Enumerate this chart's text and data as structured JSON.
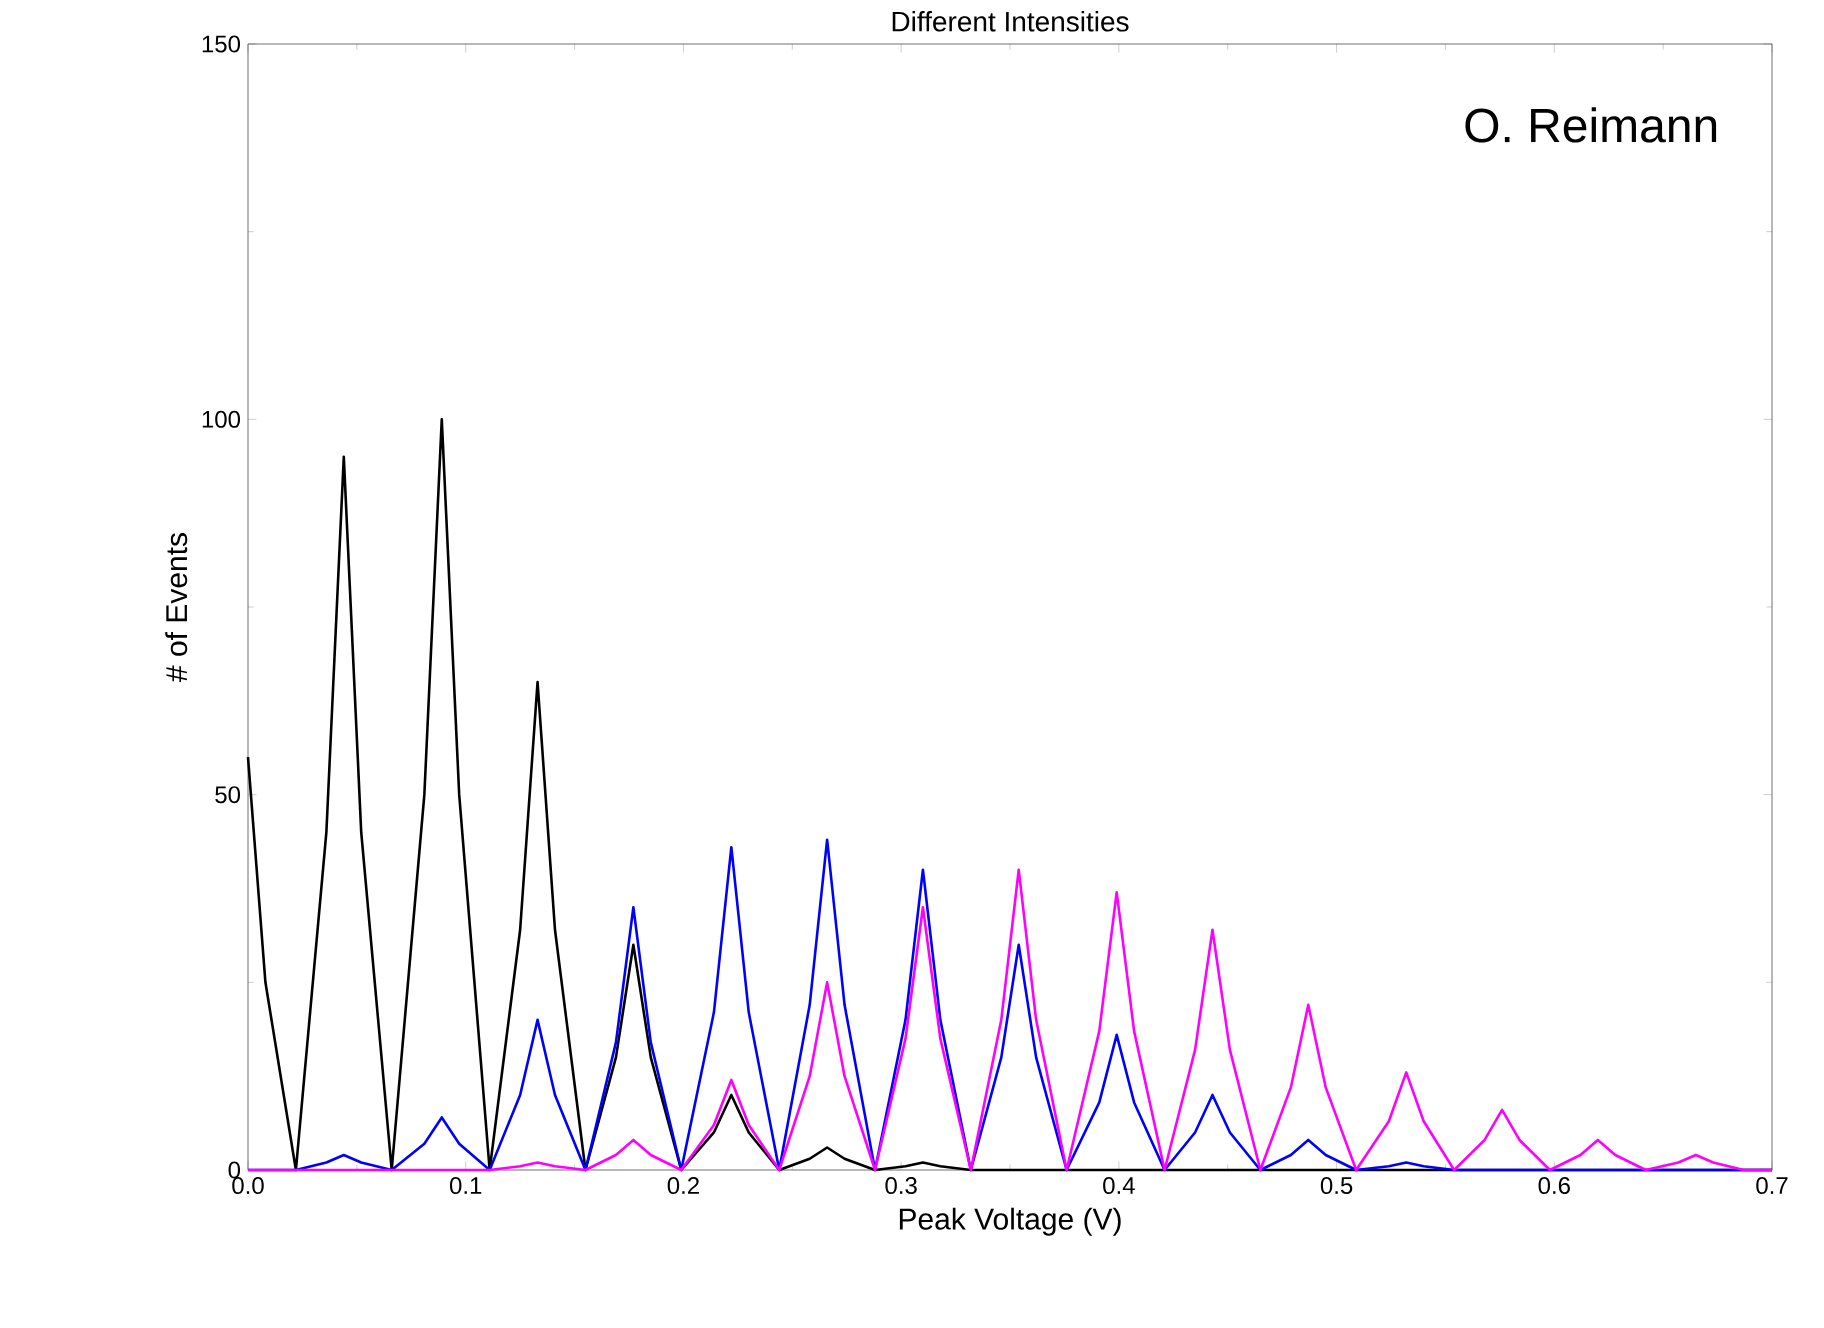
{
  "chart_data": {
    "type": "line",
    "title": "Different Intensities",
    "xlabel": "Peak Voltage (V)",
    "ylabel": "# of Events",
    "annotations": [
      "O. Reimann"
    ],
    "xlim": [
      0,
      0.7
    ],
    "ylim": [
      0,
      150
    ],
    "xticks": [
      {
        "value": 0,
        "label": "0.0"
      },
      {
        "value": 0.1,
        "label": "0.1"
      },
      {
        "value": 0.2,
        "label": "0.2"
      },
      {
        "value": 0.3,
        "label": "0.3"
      },
      {
        "value": 0.4,
        "label": "0.4"
      },
      {
        "value": 0.5,
        "label": "0.5"
      },
      {
        "value": 0.6,
        "label": "0.6"
      },
      {
        "value": 0.7,
        "label": "0.7"
      }
    ],
    "yticks": [
      0,
      50,
      100,
      150
    ],
    "series": [
      {
        "color": "#000000",
        "x": [
          0,
          0.008,
          0.022,
          0.036,
          0.044,
          0.052,
          0.066,
          0.081,
          0.089,
          0.097,
          0.111,
          0.125,
          0.133,
          0.141,
          0.155,
          0.169,
          0.177,
          0.185,
          0.199,
          0.214,
          0.222,
          0.23,
          0.244,
          0.258,
          0.266,
          0.274,
          0.288,
          0.302,
          0.31,
          0.318,
          0.332,
          0.7
        ],
        "values": [
          55,
          25,
          0,
          45,
          95,
          45,
          0,
          50,
          100,
          50,
          0,
          32,
          65,
          32,
          0,
          15,
          30,
          15,
          0,
          5,
          10,
          5,
          0,
          1.5,
          3,
          1.5,
          0,
          0.5,
          1,
          0.5,
          0,
          0
        ]
      },
      {
        "color": "#0000ff",
        "x": [
          0,
          0.022,
          0.036,
          0.044,
          0.052,
          0.066,
          0.081,
          0.089,
          0.097,
          0.111,
          0.125,
          0.133,
          0.141,
          0.155,
          0.169,
          0.177,
          0.185,
          0.199,
          0.214,
          0.222,
          0.23,
          0.244,
          0.258,
          0.266,
          0.274,
          0.288,
          0.302,
          0.31,
          0.318,
          0.332,
          0.346,
          0.354,
          0.362,
          0.376,
          0.391,
          0.399,
          0.407,
          0.421,
          0.435,
          0.443,
          0.451,
          0.465,
          0.479,
          0.487,
          0.495,
          0.509,
          0.524,
          0.532,
          0.54,
          0.554,
          0.7
        ],
        "values": [
          0,
          0,
          1,
          2,
          1,
          0,
          3.5,
          7,
          3.5,
          0,
          10,
          20,
          10,
          0,
          17,
          35,
          17,
          0,
          21,
          43,
          21,
          0,
          22,
          44,
          22,
          0,
          20,
          40,
          20,
          0,
          15,
          30,
          15,
          0,
          9,
          18,
          9,
          0,
          5,
          10,
          5,
          0,
          2,
          4,
          2,
          0,
          0.5,
          1,
          0.5,
          0,
          0
        ]
      },
      {
        "color": "#ff00ff",
        "x": [
          0,
          0.111,
          0.125,
          0.133,
          0.141,
          0.155,
          0.169,
          0.177,
          0.185,
          0.199,
          0.214,
          0.222,
          0.23,
          0.244,
          0.258,
          0.266,
          0.274,
          0.288,
          0.302,
          0.31,
          0.318,
          0.332,
          0.346,
          0.354,
          0.362,
          0.376,
          0.391,
          0.399,
          0.407,
          0.421,
          0.435,
          0.443,
          0.451,
          0.465,
          0.479,
          0.487,
          0.495,
          0.509,
          0.524,
          0.532,
          0.54,
          0.554,
          0.568,
          0.576,
          0.584,
          0.598,
          0.612,
          0.62,
          0.628,
          0.642,
          0.657,
          0.665,
          0.673,
          0.687,
          0.7
        ],
        "values": [
          0,
          0,
          0.5,
          1,
          0.5,
          0,
          2,
          4,
          2,
          0,
          6,
          12,
          6,
          0,
          12.5,
          25,
          12.5,
          0,
          17.5,
          35,
          17.5,
          0,
          20,
          40,
          20,
          0,
          18.5,
          37,
          18.5,
          0,
          16,
          32,
          16,
          0,
          11,
          22,
          11,
          0,
          6.5,
          13,
          6.5,
          0,
          4,
          8,
          4,
          0,
          2,
          4,
          2,
          0,
          1,
          2,
          1,
          0,
          0
        ]
      }
    ]
  }
}
